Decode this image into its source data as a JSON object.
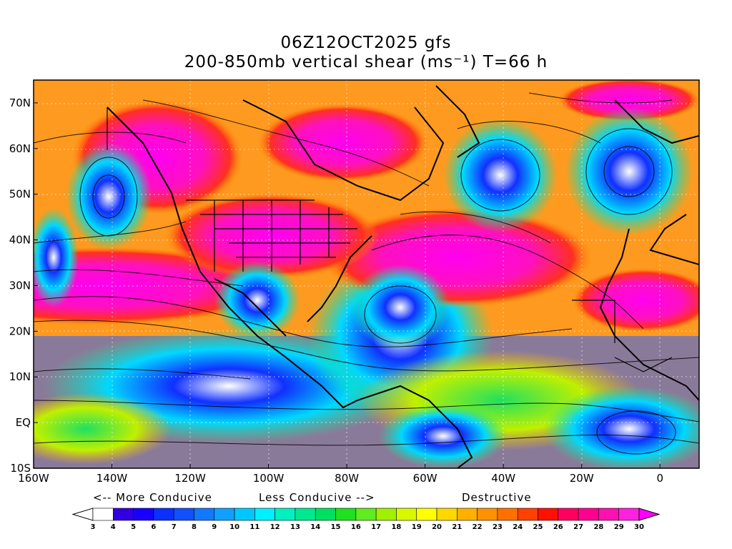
{
  "title": {
    "line1": "06Z12OCT2025 gfs",
    "line2": "200-850mb vertical shear (ms⁻¹) T=66 h"
  },
  "map": {
    "lon_range": [
      -160,
      10
    ],
    "lat_range": [
      -10,
      75
    ],
    "lat_labels": [
      "70N",
      "60N",
      "50N",
      "40N",
      "30N",
      "20N",
      "10N",
      "EQ",
      "10S"
    ],
    "lat_values": [
      70,
      60,
      50,
      40,
      30,
      20,
      10,
      0,
      -10
    ],
    "lon_labels": [
      "160W",
      "140W",
      "120W",
      "100W",
      "80W",
      "60W",
      "40W",
      "20W",
      "0"
    ],
    "lon_values": [
      -160,
      -140,
      -120,
      -100,
      -80,
      -60,
      -40,
      -20,
      0
    ],
    "gridlines": true,
    "field_colors": {
      "low": "#1a3cff",
      "mid": "#22e08a",
      "high": "#ff8a00",
      "extreme": "#ff00e0"
    }
  },
  "annotations": {
    "more_conducive": "<-- More Conducive",
    "less_conducive": "Less Conducive -->",
    "destructive": "Destructive"
  },
  "colorbar": {
    "labels": [
      "3",
      "4",
      "5",
      "6",
      "7",
      "8",
      "9",
      "10",
      "11",
      "12",
      "13",
      "14",
      "15",
      "16",
      "17",
      "18",
      "19",
      "20",
      "21",
      "22",
      "23",
      "24",
      "25",
      "26",
      "27",
      "28",
      "29",
      "30"
    ],
    "colors": [
      "#ffffff",
      "#3000e0",
      "#1800ff",
      "#0c30ff",
      "#1050ff",
      "#1478ff",
      "#10a0ff",
      "#00c8ff",
      "#00f0ff",
      "#00f0c0",
      "#00e890",
      "#00e060",
      "#20e020",
      "#60ec20",
      "#a0f000",
      "#d8f800",
      "#ffff00",
      "#ffd800",
      "#ffb000",
      "#ff9000",
      "#ff7000",
      "#ff4000",
      "#ff1000",
      "#ff0060",
      "#ff0090",
      "#ff10b0",
      "#ff20e0",
      "#ff00ff"
    ]
  }
}
